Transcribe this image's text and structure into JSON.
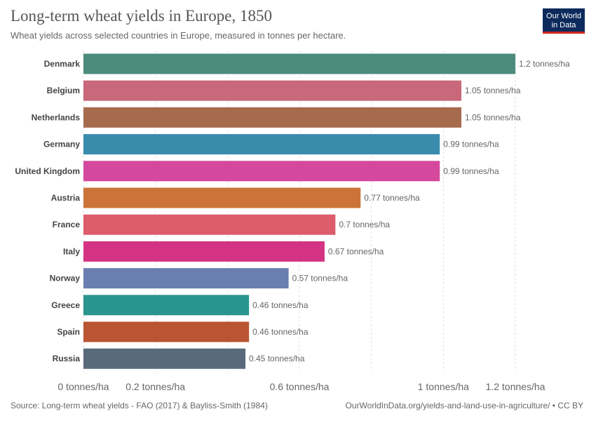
{
  "header": {
    "title": "Long-term wheat yields in Europe, 1850",
    "subtitle": "Wheat yields across selected countries in Europe, measured in tonnes per hectare.",
    "logo_line1": "Our World",
    "logo_line2": "in Data"
  },
  "footer": {
    "source": "Source: Long-term wheat yields - FAO (2017) & Bayliss-Smith (1984)",
    "url": "OurWorldInData.org/yields-and-land-use-in-agriculture/ • CC BY"
  },
  "chart_data": {
    "type": "bar",
    "orientation": "horizontal",
    "title": "Long-term wheat yields in Europe, 1850",
    "subtitle": "Wheat yields across selected countries in Europe, measured in tonnes per hectare.",
    "unit": "tonnes/ha",
    "categories": [
      "Denmark",
      "Belgium",
      "Netherlands",
      "Germany",
      "United Kingdom",
      "Austria",
      "France",
      "Italy",
      "Norway",
      "Greece",
      "Spain",
      "Russia"
    ],
    "values": [
      1.2,
      1.05,
      1.05,
      0.99,
      0.99,
      0.77,
      0.7,
      0.67,
      0.57,
      0.46,
      0.46,
      0.45
    ],
    "value_labels": [
      "1.2 tonnes/ha",
      "1.05 tonnes/ha",
      "1.05 tonnes/ha",
      "0.99 tonnes/ha",
      "0.99 tonnes/ha",
      "0.77 tonnes/ha",
      "0.7 tonnes/ha",
      "0.67 tonnes/ha",
      "0.57 tonnes/ha",
      "0.46 tonnes/ha",
      "0.46 tonnes/ha",
      "0.45 tonnes/ha"
    ],
    "colors": [
      "#4c8c7d",
      "#c8687a",
      "#a66b4d",
      "#3a8cad",
      "#d4489d",
      "#cc7339",
      "#dd5c6c",
      "#d43383",
      "#6a7fb0",
      "#2a958c",
      "#bb5432",
      "#5a6a7d"
    ],
    "xlim": [
      0,
      1.2
    ],
    "x_ticks": [
      0,
      0.2,
      0.6,
      1,
      1.2
    ],
    "x_tick_labels": [
      "0 tonnes/ha",
      "0.2 tonnes/ha",
      "0.6 tonnes/ha",
      "1 tonnes/ha",
      "1.2 tonnes/ha"
    ],
    "grid_ticks": [
      0,
      0.2,
      0.4,
      0.6,
      0.8,
      1.0,
      1.2
    ],
    "grid": true,
    "legend": "none"
  }
}
